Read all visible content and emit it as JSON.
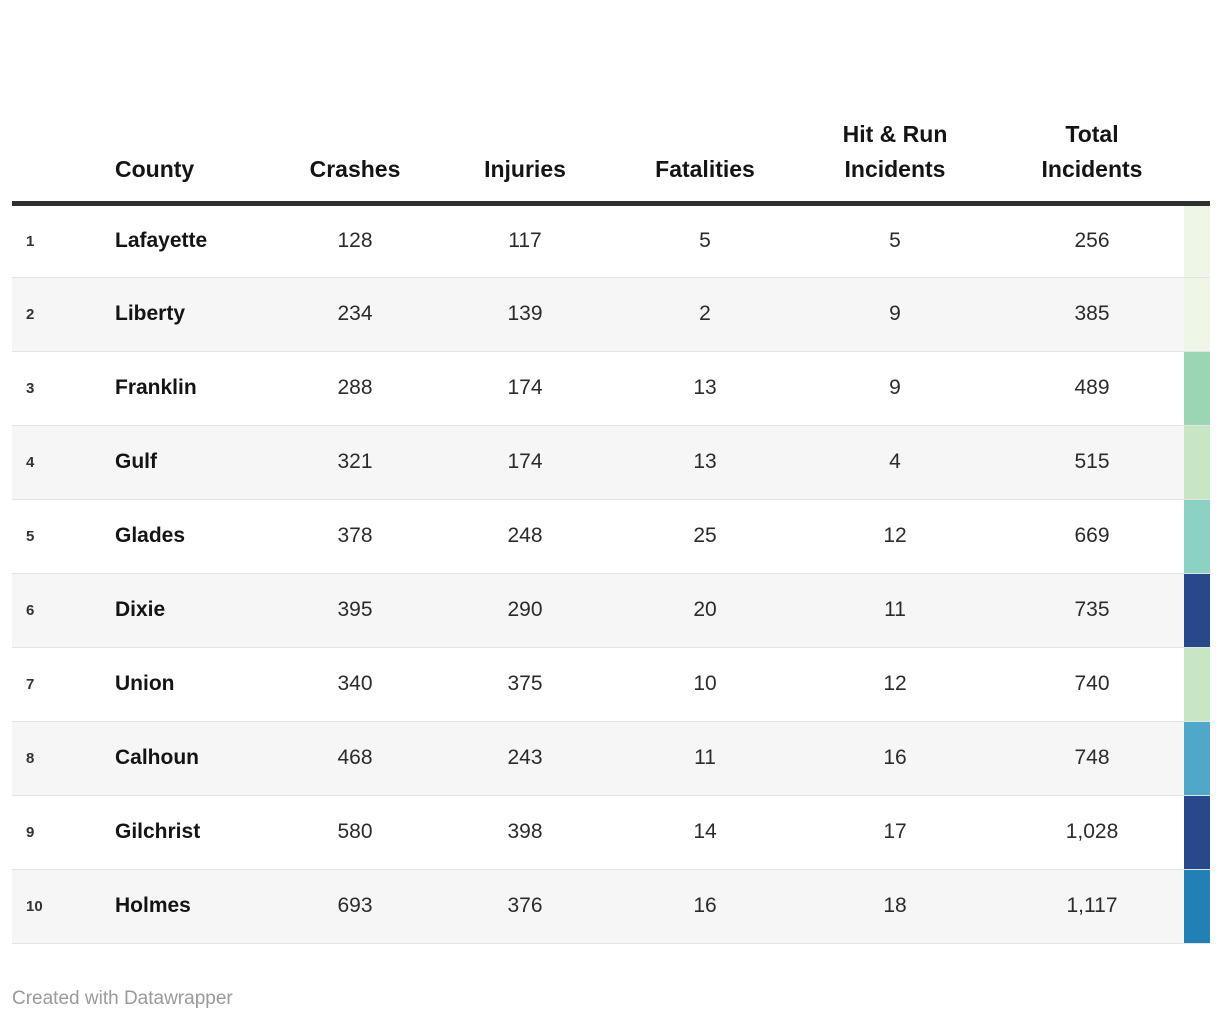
{
  "table": {
    "columns": [
      {
        "key": "rank",
        "label": ""
      },
      {
        "key": "county",
        "label": "County"
      },
      {
        "key": "crashes",
        "label": "Crashes"
      },
      {
        "key": "injuries",
        "label": "Injuries"
      },
      {
        "key": "fatalities",
        "label": "Fatalities"
      },
      {
        "key": "hit_run",
        "label": "Hit & Run Incidents"
      },
      {
        "key": "total",
        "label": "Total Incidents"
      },
      {
        "key": "strip",
        "label": ""
      }
    ],
    "rows": [
      {
        "rank": "1",
        "county": "Lafayette",
        "crashes": "128",
        "injuries": "117",
        "fatalities": "5",
        "hit_run": "5",
        "total": "256",
        "strip_color": "#eef6e7"
      },
      {
        "rank": "2",
        "county": "Liberty",
        "crashes": "234",
        "injuries": "139",
        "fatalities": "2",
        "hit_run": "9",
        "total": "385",
        "strip_color": "#eef6e7"
      },
      {
        "rank": "3",
        "county": "Franklin",
        "crashes": "288",
        "injuries": "174",
        "fatalities": "13",
        "hit_run": "9",
        "total": "489",
        "strip_color": "#9ad6b4"
      },
      {
        "rank": "4",
        "county": "Gulf",
        "crashes": "321",
        "injuries": "174",
        "fatalities": "13",
        "hit_run": "4",
        "total": "515",
        "strip_color": "#c7e6c3"
      },
      {
        "rank": "5",
        "county": "Glades",
        "crashes": "378",
        "injuries": "248",
        "fatalities": "25",
        "hit_run": "12",
        "total": "669",
        "strip_color": "#8bd1c4"
      },
      {
        "rank": "6",
        "county": "Dixie",
        "crashes": "395",
        "injuries": "290",
        "fatalities": "20",
        "hit_run": "11",
        "total": "735",
        "strip_color": "#27498c"
      },
      {
        "rank": "7",
        "county": "Union",
        "crashes": "340",
        "injuries": "375",
        "fatalities": "10",
        "hit_run": "12",
        "total": "740",
        "strip_color": "#c7e6c3"
      },
      {
        "rank": "8",
        "county": "Calhoun",
        "crashes": "468",
        "injuries": "243",
        "fatalities": "11",
        "hit_run": "16",
        "total": "748",
        "strip_color": "#4fa8c8"
      },
      {
        "rank": "9",
        "county": "Gilchrist",
        "crashes": "580",
        "injuries": "398",
        "fatalities": "14",
        "hit_run": "17",
        "total": "1,028",
        "strip_color": "#27498c"
      },
      {
        "rank": "10",
        "county": "Holmes",
        "crashes": "693",
        "injuries": "376",
        "fatalities": "16",
        "hit_run": "18",
        "total": "1,117",
        "strip_color": "#2380b5"
      }
    ]
  },
  "footer": {
    "credit": "Created with Datawrapper"
  },
  "colors": {
    "header_rule": "#2f2f2f",
    "row_alt_bg": "#f6f6f6",
    "row_divider": "#e4e4e4",
    "footer_text": "#9a9a9a"
  },
  "chart_data": {
    "type": "table",
    "title": "",
    "columns": [
      "",
      "County",
      "Crashes",
      "Injuries",
      "Fatalities",
      "Hit & Run Incidents",
      "Total Incidents"
    ],
    "rows": [
      [
        1,
        "Lafayette",
        128,
        117,
        5,
        5,
        256
      ],
      [
        2,
        "Liberty",
        234,
        139,
        2,
        9,
        385
      ],
      [
        3,
        "Franklin",
        288,
        174,
        13,
        9,
        489
      ],
      [
        4,
        "Gulf",
        321,
        174,
        13,
        4,
        515
      ],
      [
        5,
        "Glades",
        378,
        248,
        25,
        12,
        669
      ],
      [
        6,
        "Dixie",
        395,
        290,
        20,
        11,
        735
      ],
      [
        7,
        "Union",
        340,
        375,
        10,
        12,
        740
      ],
      [
        8,
        "Calhoun",
        468,
        243,
        11,
        16,
        748
      ],
      [
        9,
        "Gilchrist",
        580,
        398,
        14,
        17,
        1028
      ],
      [
        10,
        "Holmes",
        693,
        376,
        16,
        18,
        1117
      ]
    ],
    "row_strip_colors": [
      "#eef6e7",
      "#eef6e7",
      "#9ad6b4",
      "#c7e6c3",
      "#8bd1c4",
      "#27498c",
      "#c7e6c3",
      "#4fa8c8",
      "#27498c",
      "#2380b5"
    ],
    "layout_hints": {
      "zebra_striping": true,
      "rank_column": true,
      "color_strip_column": "Total Incidents"
    }
  }
}
